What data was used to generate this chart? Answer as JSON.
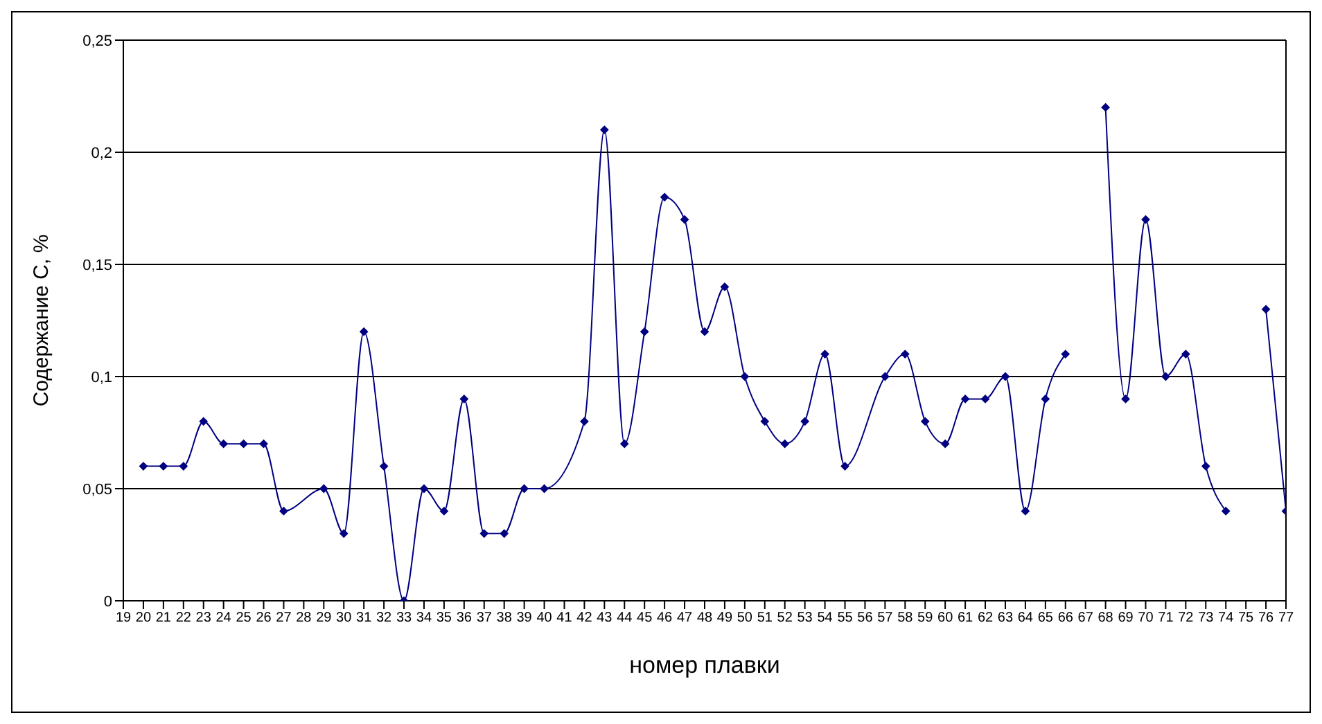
{
  "chart_data": {
    "type": "line",
    "xlabel": "номер плавки",
    "ylabel": "Содержание С, %",
    "x": [
      20,
      21,
      22,
      23,
      24,
      25,
      26,
      27,
      29,
      30,
      31,
      32,
      33,
      34,
      35,
      36,
      37,
      38,
      39,
      40,
      42,
      43,
      44,
      45,
      46,
      47,
      48,
      49,
      50,
      51,
      52,
      53,
      54,
      55,
      57,
      58,
      59,
      60,
      61,
      62,
      63,
      64,
      65,
      66,
      67,
      68,
      69,
      70,
      71,
      72,
      73,
      74,
      75,
      76,
      77
    ],
    "series": [
      {
        "color": "#000080",
        "values": [
          0.06,
          0.06,
          0.06,
          0.08,
          0.07,
          0.07,
          0.07,
          0.04,
          0.05,
          0.03,
          0.12,
          0.06,
          0.0,
          0.05,
          0.04,
          0.09,
          0.03,
          0.03,
          0.05,
          0.05,
          0.08,
          0.21,
          0.07,
          0.12,
          0.18,
          0.17,
          0.12,
          0.14,
          0.1,
          0.08,
          0.07,
          0.08,
          0.11,
          0.06,
          0.1,
          0.11,
          0.08,
          0.07,
          0.09,
          0.09,
          0.1,
          0.04,
          0.09,
          0.11,
          null,
          0.22,
          0.09,
          0.17,
          0.1,
          0.11,
          0.06,
          0.04,
          null,
          0.13,
          0.04
        ]
      }
    ],
    "xlim": [
      19,
      77
    ],
    "xticks": [
      19,
      20,
      21,
      22,
      23,
      24,
      25,
      26,
      27,
      28,
      29,
      30,
      31,
      32,
      33,
      34,
      35,
      36,
      37,
      38,
      39,
      40,
      41,
      42,
      43,
      44,
      45,
      46,
      47,
      48,
      49,
      50,
      51,
      52,
      53,
      54,
      55,
      56,
      57,
      58,
      59,
      60,
      61,
      62,
      63,
      64,
      65,
      66,
      67,
      68,
      69,
      70,
      71,
      72,
      73,
      74,
      75,
      76,
      77
    ],
    "ylim": [
      0,
      0.25
    ],
    "yticks": [
      {
        "value": 0,
        "label": "0"
      },
      {
        "value": 0.05,
        "label": "0,05"
      },
      {
        "value": 0.1,
        "label": "0,1"
      },
      {
        "value": 0.15,
        "label": "0,15"
      },
      {
        "value": 0.2,
        "label": "0,2"
      },
      {
        "value": 0.25,
        "label": "0,25"
      }
    ],
    "grid": "y",
    "marker": "diamond",
    "line_style": "solid"
  }
}
